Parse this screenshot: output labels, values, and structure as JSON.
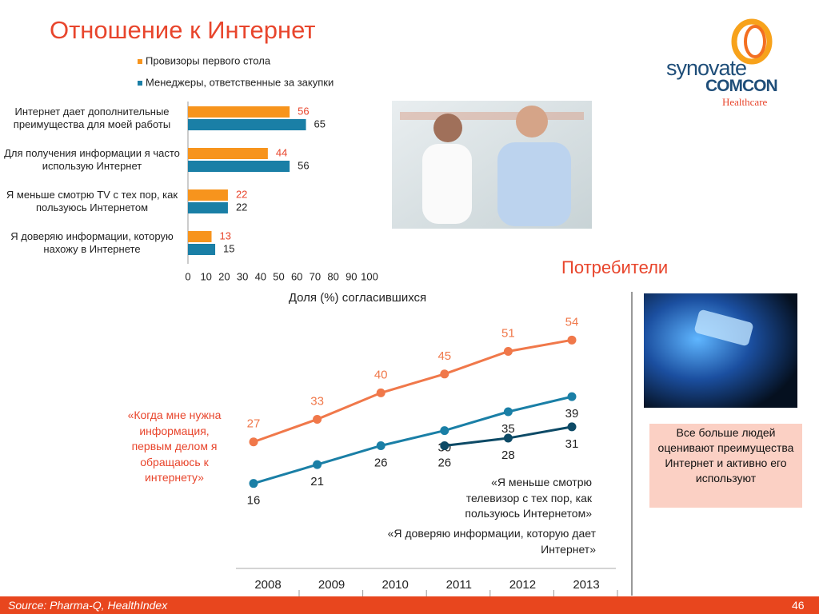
{
  "title": "Отношение к Интернет",
  "logo": {
    "brand": "synovate",
    "name": "COMCON",
    "division": "Healthcare"
  },
  "consumers_heading": "Потребители",
  "callout": "Все больше людей оценивают преимущества Интернет и активно его используют",
  "footer": {
    "source": "Source:  Pharma-Q, HealthIndex",
    "page": "46"
  },
  "chart_data": [
    {
      "type": "hbar",
      "categories": [
        "Интернет дает дополнительные преимущества для моей работы",
        "Для получения информации я часто использую Интернет",
        "Я меньше смотрю TV с тех пор, как пользуюсь Интернетом",
        "Я доверяю информации, которую нахожу в Интернете"
      ],
      "series": [
        {
          "name": "Провизоры первого стола",
          "color": "#f7941d",
          "label_color": "#e8452c",
          "values": [
            56,
            44,
            22,
            13
          ]
        },
        {
          "name": "Менеджеры, ответственные за закупки",
          "color": "#1a7fa6",
          "label_color": "#222222",
          "values": [
            65,
            56,
            22,
            15
          ]
        }
      ],
      "xlim": [
        0,
        100
      ],
      "xticks": [
        0,
        10,
        20,
        30,
        40,
        50,
        60,
        70,
        80,
        90,
        100
      ],
      "xlabel": "Доля (%) согласившихся"
    },
    {
      "type": "line",
      "categories": [
        "2008",
        "2009",
        "2010",
        "2011",
        "2012",
        "2013"
      ],
      "series": [
        {
          "name": "«Когда мне нужна информация, первым делом я обращаюсь к интернету»",
          "color": "#f0784a",
          "values": [
            27,
            33,
            40,
            45,
            51,
            54
          ]
        },
        {
          "name": "«Я меньше смотрю телевизор с тех пор, как пользуюсь Интернетом»",
          "color": "#1a7fa6",
          "values": [
            16,
            21,
            26,
            30,
            35,
            39
          ]
        },
        {
          "name": "«Я доверяю информации, которую дает Интернет»",
          "color": "#0d4a66",
          "values": [
            null,
            null,
            null,
            26,
            28,
            31
          ]
        }
      ],
      "ylim": [
        10,
        60
      ]
    }
  ]
}
